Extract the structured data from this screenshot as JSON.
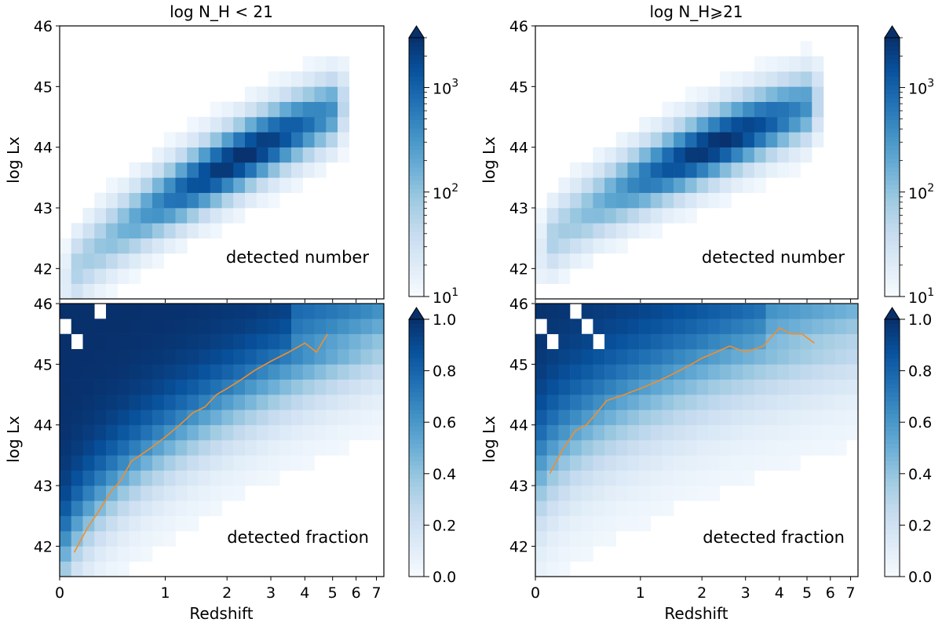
{
  "figure": {
    "x_axis_label": "Redshift",
    "y_axis_label": "log Lx",
    "x_tick_labels": [
      "0",
      "1",
      "2",
      "3",
      "4",
      "5",
      "6",
      "7"
    ],
    "y_tick_labels": [
      "42",
      "43",
      "44",
      "45",
      "46"
    ]
  },
  "chart_data": [
    {
      "type": "heatmap",
      "panel": "top-left",
      "title": "log N_H < 21",
      "annotation": "detected number",
      "xlabel": "",
      "ylabel": "log Lx",
      "x_scale": "log(1+z)",
      "xlim": [
        0,
        7.4
      ],
      "ylim": [
        41.5,
        46
      ],
      "grid": false,
      "colorbar": {
        "scale": "log",
        "range": [
          10,
          3000
        ],
        "tick_labels": [
          "10^1",
          "10^2",
          "10^3"
        ],
        "extend": "max",
        "colormap": "Blues"
      },
      "peak": {
        "z": 1.6,
        "logLx": 44.3,
        "value": 3000
      },
      "ridge": [
        [
          0.05,
          41.7
        ],
        [
          0.3,
          42.8
        ],
        [
          0.8,
          43.6
        ],
        [
          1.5,
          44.2
        ],
        [
          2.5,
          44.5
        ],
        [
          3.5,
          44.7
        ],
        [
          4.5,
          44.8
        ]
      ]
    },
    {
      "type": "heatmap",
      "panel": "top-right",
      "title": "log N_H⩾21",
      "annotation": "detected number",
      "xlabel": "",
      "ylabel": "log Lx",
      "x_scale": "log(1+z)",
      "xlim": [
        0,
        7.4
      ],
      "ylim": [
        41.5,
        46
      ],
      "grid": false,
      "colorbar": {
        "scale": "log",
        "range": [
          10,
          3000
        ],
        "tick_labels": [
          "10^1",
          "10^2",
          "10^3"
        ],
        "extend": "max",
        "colormap": "Blues"
      },
      "peak": {
        "z": 1.8,
        "logLx": 44.4,
        "value": 3000
      },
      "ridge": [
        [
          0.05,
          42.3
        ],
        [
          0.3,
          43.0
        ],
        [
          0.8,
          43.7
        ],
        [
          1.5,
          44.2
        ],
        [
          2.5,
          44.6
        ],
        [
          3.5,
          44.8
        ],
        [
          4.5,
          44.9
        ]
      ]
    },
    {
      "type": "heatmap",
      "panel": "bottom-left",
      "title": "",
      "annotation": "detected fraction",
      "xlabel": "Redshift",
      "ylabel": "log Lx",
      "x_scale": "log(1+z)",
      "xlim": [
        0,
        7.4
      ],
      "ylim": [
        41.5,
        46
      ],
      "grid": false,
      "colorbar": {
        "scale": "linear",
        "range": [
          0,
          1
        ],
        "tick_labels": [
          "0.0",
          "0.2",
          "0.4",
          "0.6",
          "0.8",
          "1.0"
        ],
        "extend": "max",
        "colormap": "Blues"
      },
      "line": {
        "color": "#f28e2b",
        "z": [
          0.1,
          0.2,
          0.3,
          0.4,
          0.5,
          0.6,
          0.8,
          1.0,
          1.2,
          1.4,
          1.6,
          1.8,
          2.0,
          2.3,
          2.6,
          3.0,
          3.5,
          4.0,
          4.4,
          4.8
        ],
        "logLx": [
          41.9,
          42.3,
          42.6,
          42.9,
          43.1,
          43.4,
          43.6,
          43.8,
          44.0,
          44.2,
          44.3,
          44.5,
          44.6,
          44.75,
          44.9,
          45.05,
          45.2,
          45.35,
          45.2,
          45.5
        ]
      }
    },
    {
      "type": "heatmap",
      "panel": "bottom-right",
      "title": "",
      "annotation": "detected fraction",
      "xlabel": "Redshift",
      "ylabel": "log Lx",
      "x_scale": "log(1+z)",
      "xlim": [
        0,
        7.4
      ],
      "ylim": [
        41.5,
        46
      ],
      "grid": false,
      "colorbar": {
        "scale": "linear",
        "range": [
          0,
          1
        ],
        "tick_labels": [
          "0.0",
          "0.2",
          "0.4",
          "0.6",
          "0.8",
          "1.0"
        ],
        "extend": "max",
        "colormap": "Blues"
      },
      "line": {
        "color": "#f28e2b",
        "z": [
          0.1,
          0.2,
          0.3,
          0.4,
          0.5,
          0.6,
          0.8,
          1.0,
          1.2,
          1.4,
          1.6,
          1.8,
          2.0,
          2.3,
          2.6,
          3.0,
          3.5,
          4.0,
          4.4,
          4.8,
          5.3
        ],
        "logLx": [
          43.2,
          43.6,
          43.9,
          44.0,
          44.2,
          44.4,
          44.5,
          44.6,
          44.7,
          44.8,
          44.9,
          45.0,
          45.1,
          45.2,
          45.3,
          45.2,
          45.3,
          45.6,
          45.5,
          45.5,
          45.35
        ]
      }
    }
  ]
}
